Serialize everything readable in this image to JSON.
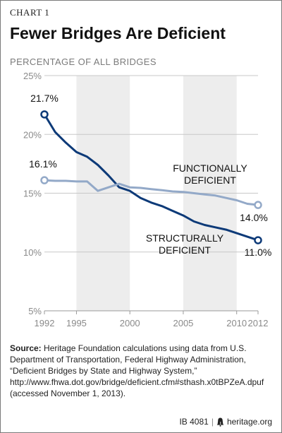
{
  "header": {
    "chart_label": "CHART 1",
    "title": "Fewer Bridges Are Deficient",
    "subtitle": "PERCENTAGE OF ALL BRIDGES"
  },
  "colors": {
    "structural": "#0d3a78",
    "functional": "#93a9c8",
    "band": "#ededed",
    "grid": "#c8c8c8",
    "axis_text": "#8a8a8a"
  },
  "chart_data": {
    "type": "line",
    "title": "Fewer Bridges Are Deficient",
    "ylabel": "PERCENTAGE OF ALL BRIDGES",
    "xlabel": "",
    "xlim": [
      1992,
      2012
    ],
    "ylim": [
      5,
      25
    ],
    "x_ticks": [
      1992,
      1995,
      2000,
      2005,
      2010,
      2012
    ],
    "y_ticks": [
      5,
      10,
      15,
      20,
      25
    ],
    "y_tick_labels": [
      "5%",
      "10%",
      "15%",
      "20%",
      "25%"
    ],
    "grid": "horizontal",
    "series": [
      {
        "name": "STRUCTURALLY DEFICIENT",
        "label_lines": [
          "STRUCTURALLY",
          "DEFICIENT"
        ],
        "color": "#0d3a78",
        "x": [
          1992,
          1993,
          1994,
          1995,
          1996,
          1997,
          1998,
          1999,
          2000,
          2001,
          2002,
          2003,
          2004,
          2005,
          2006,
          2007,
          2008,
          2009,
          2010,
          2011,
          2012
        ],
        "y": [
          21.7,
          20.2,
          19.3,
          18.5,
          18.1,
          17.4,
          16.5,
          15.5,
          15.2,
          14.6,
          14.2,
          13.9,
          13.5,
          13.1,
          12.6,
          12.3,
          12.1,
          11.9,
          11.6,
          11.3,
          11.0
        ],
        "start_label": "21.7%",
        "end_label": "11.0%"
      },
      {
        "name": "FUNCTIONALLY DEFICIENT",
        "label_lines": [
          "FUNCTIONALLY",
          "DEFICIENT"
        ],
        "color": "#93a9c8",
        "x": [
          1992,
          1993,
          1994,
          1995,
          1996,
          1997,
          1998,
          1999,
          2000,
          2001,
          2002,
          2003,
          2004,
          2005,
          2006,
          2007,
          2008,
          2009,
          2010,
          2011,
          2012
        ],
        "y": [
          16.1,
          16.05,
          16.05,
          16.0,
          16.0,
          15.2,
          15.5,
          15.8,
          15.5,
          15.45,
          15.35,
          15.25,
          15.15,
          15.1,
          15.0,
          14.9,
          14.8,
          14.6,
          14.4,
          14.1,
          14.0
        ],
        "start_label": "16.1%",
        "end_label": "14.0%"
      }
    ]
  },
  "source": {
    "label": "Source:",
    "text": "Heritage Foundation calculations using data from U.S. Department of Transportation, Federal Highway Administration, “Deficient Bridges by State and Highway System,” http://www.fhwa.dot.gov/bridge/deficient.cfm#sthash.x0tBPZeA.dpuf (accessed November 1, 2013)."
  },
  "footer": {
    "code": "IB 4081",
    "site": "heritage.org",
    "logo_icon": "liberty-bell-icon"
  }
}
